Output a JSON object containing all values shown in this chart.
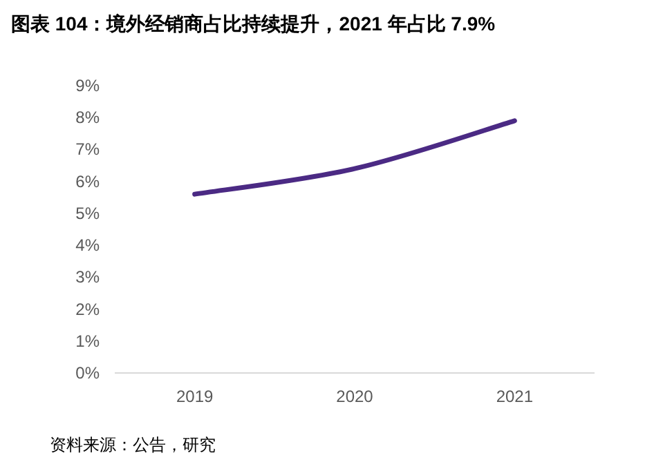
{
  "chart_data": {
    "type": "line",
    "title": "图表 104：境外经销商占比持续提升，2021 年占比 7.9%",
    "categories": [
      "2019",
      "2020",
      "2021"
    ],
    "series": [
      {
        "color": "#4b2a84",
        "values": [
          5.6,
          6.4,
          7.9
        ]
      }
    ],
    "ylim": [
      0,
      9
    ],
    "yticks": [
      {
        "value": 0,
        "label": "0%"
      },
      {
        "value": 1,
        "label": "1%"
      },
      {
        "value": 2,
        "label": "2%"
      },
      {
        "value": 3,
        "label": "3%"
      },
      {
        "value": 4,
        "label": "4%"
      },
      {
        "value": 5,
        "label": "5%"
      },
      {
        "value": 6,
        "label": "6%"
      },
      {
        "value": 7,
        "label": "7%"
      },
      {
        "value": 8,
        "label": "8%"
      },
      {
        "value": 9,
        "label": "9%"
      }
    ],
    "grid": false,
    "marker": "none",
    "line_style": "solid",
    "annotations": [
      "资料来源：公告，研究"
    ]
  }
}
